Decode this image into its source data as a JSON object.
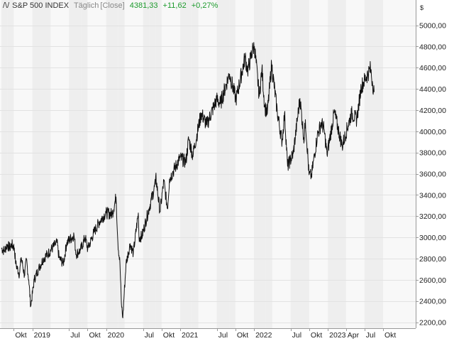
{
  "header": {
    "logo_text": "/\\/",
    "instrument": "S&P 500 INDEX",
    "interval": "Täglich",
    "mode": "[Close]",
    "last": "4381,33",
    "change": "+11,62",
    "change_pct": "+0,27%"
  },
  "chart_data": {
    "type": "line",
    "title": "S&P 500 INDEX",
    "unit": "$",
    "ylim": [
      2200,
      5000
    ],
    "y_ticks": [
      2200,
      2400,
      2600,
      2800,
      3000,
      3200,
      3400,
      3600,
      3800,
      4000,
      4200,
      4400,
      4600,
      4800,
      5000
    ],
    "y_tick_labels": [
      "2200,00",
      "2400,00",
      "2600,00",
      "2800,00",
      "3000,00",
      "3200,00",
      "3400,00",
      "3600,00",
      "3800,00",
      "4000,00",
      "4200,00",
      "4400,00",
      "4600,00",
      "4800,00",
      "5000,00"
    ],
    "x_range": [
      "2018-08-01",
      "2023-08-20"
    ],
    "x_ticks": [
      {
        "label": "Okt",
        "date": "2018-10-01"
      },
      {
        "label": "2019",
        "date": "2019-01-01"
      },
      {
        "label": "Jul",
        "date": "2019-07-01"
      },
      {
        "label": "Okt",
        "date": "2019-10-01"
      },
      {
        "label": "2020",
        "date": "2020-01-01"
      },
      {
        "label": "Jul",
        "date": "2020-07-01"
      },
      {
        "label": "Okt",
        "date": "2020-10-01"
      },
      {
        "label": "2021",
        "date": "2021-01-01"
      },
      {
        "label": "Jul",
        "date": "2021-07-01"
      },
      {
        "label": "Okt",
        "date": "2021-10-01"
      },
      {
        "label": "2022",
        "date": "2022-01-01"
      },
      {
        "label": "Jul",
        "date": "2022-07-01"
      },
      {
        "label": "Okt",
        "date": "2022-10-01"
      },
      {
        "label": "2023",
        "date": "2023-01-01"
      },
      {
        "label": "Apr",
        "date": "2023-04-01"
      },
      {
        "label": "Jul",
        "date": "2023-07-01"
      },
      {
        "label": "Okt",
        "date": "2023-10-01"
      }
    ],
    "grid": true,
    "legend": "none",
    "series": [
      {
        "color": "#111111",
        "points": [
          [
            "2018-08-01",
            2900
          ],
          [
            "2018-08-15",
            2870
          ],
          [
            "2018-08-29",
            2930
          ],
          [
            "2018-09-12",
            2900
          ],
          [
            "2018-09-20",
            2935
          ],
          [
            "2018-10-04",
            2900
          ],
          [
            "2018-10-11",
            2750
          ],
          [
            "2018-10-29",
            2650
          ],
          [
            "2018-11-07",
            2810
          ],
          [
            "2018-11-23",
            2640
          ],
          [
            "2018-12-03",
            2790
          ],
          [
            "2018-12-14",
            2600
          ],
          [
            "2018-12-24",
            2350
          ],
          [
            "2019-01-10",
            2600
          ],
          [
            "2019-01-31",
            2700
          ],
          [
            "2019-02-25",
            2800
          ],
          [
            "2019-03-21",
            2850
          ],
          [
            "2019-04-23",
            2930
          ],
          [
            "2019-05-03",
            2950
          ],
          [
            "2019-05-13",
            2810
          ],
          [
            "2019-06-03",
            2750
          ],
          [
            "2019-06-20",
            2950
          ],
          [
            "2019-07-26",
            3020
          ],
          [
            "2019-08-05",
            2840
          ],
          [
            "2019-08-27",
            2880
          ],
          [
            "2019-09-19",
            3000
          ],
          [
            "2019-10-02",
            2890
          ],
          [
            "2019-10-31",
            3040
          ],
          [
            "2019-11-29",
            3150
          ],
          [
            "2019-12-31",
            3230
          ],
          [
            "2020-01-31",
            3220
          ],
          [
            "2020-02-19",
            3380
          ],
          [
            "2020-02-28",
            2950
          ],
          [
            "2020-03-09",
            2750
          ],
          [
            "2020-03-16",
            2380
          ],
          [
            "2020-03-23",
            2240
          ],
          [
            "2020-04-08",
            2750
          ],
          [
            "2020-04-29",
            2940
          ],
          [
            "2020-05-14",
            2850
          ],
          [
            "2020-06-08",
            3230
          ],
          [
            "2020-06-11",
            3000
          ],
          [
            "2020-06-26",
            3010
          ],
          [
            "2020-07-31",
            3270
          ],
          [
            "2020-08-31",
            3500
          ],
          [
            "2020-09-02",
            3580
          ],
          [
            "2020-09-23",
            3240
          ],
          [
            "2020-10-12",
            3530
          ],
          [
            "2020-10-30",
            3270
          ],
          [
            "2020-11-09",
            3550
          ],
          [
            "2020-12-31",
            3750
          ],
          [
            "2021-01-29",
            3710
          ],
          [
            "2021-02-12",
            3930
          ],
          [
            "2021-03-04",
            3770
          ],
          [
            "2021-04-15",
            4170
          ],
          [
            "2021-05-12",
            4060
          ],
          [
            "2021-06-30",
            4300
          ],
          [
            "2021-07-19",
            4260
          ],
          [
            "2021-08-27",
            4510
          ],
          [
            "2021-09-02",
            4540
          ],
          [
            "2021-10-04",
            4300
          ],
          [
            "2021-11-18",
            4700
          ],
          [
            "2021-11-30",
            4570
          ],
          [
            "2021-12-28",
            4790
          ],
          [
            "2022-01-03",
            4800
          ],
          [
            "2022-01-27",
            4330
          ],
          [
            "2022-02-09",
            4590
          ],
          [
            "2022-02-23",
            4230
          ],
          [
            "2022-03-08",
            4170
          ],
          [
            "2022-03-29",
            4630
          ],
          [
            "2022-04-26",
            4180
          ],
          [
            "2022-05-20",
            3900
          ],
          [
            "2022-06-01",
            4170
          ],
          [
            "2022-06-16",
            3670
          ],
          [
            "2022-07-14",
            3790
          ],
          [
            "2022-08-16",
            4310
          ],
          [
            "2022-09-06",
            3910
          ],
          [
            "2022-09-12",
            4110
          ],
          [
            "2022-09-30",
            3590
          ],
          [
            "2022-10-12",
            3580
          ],
          [
            "2022-11-10",
            3960
          ],
          [
            "2022-11-30",
            4080
          ],
          [
            "2022-12-13",
            4020
          ],
          [
            "2022-12-28",
            3780
          ],
          [
            "2023-02-02",
            4180
          ],
          [
            "2023-03-13",
            3860
          ],
          [
            "2023-04-28",
            4170
          ],
          [
            "2023-05-24",
            4110
          ],
          [
            "2023-06-15",
            4420
          ],
          [
            "2023-07-31",
            4590
          ],
          [
            "2023-08-09",
            4470
          ],
          [
            "2023-08-18",
            4370
          ]
        ]
      }
    ]
  }
}
